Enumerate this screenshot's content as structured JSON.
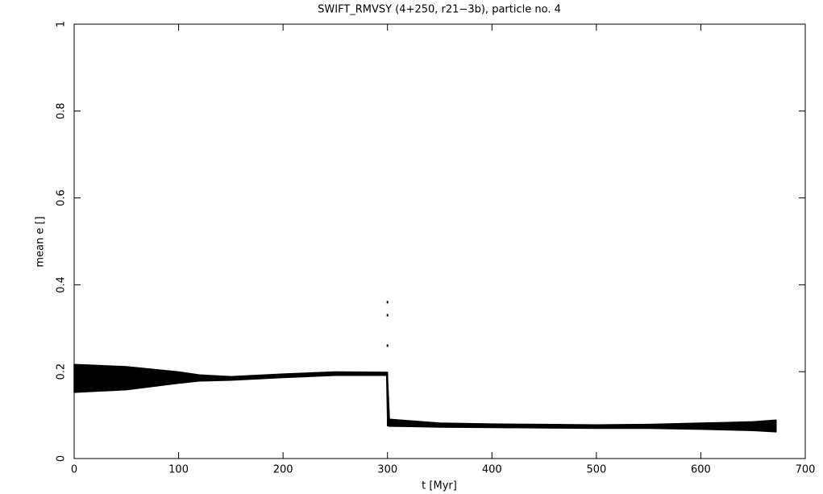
{
  "chart_data": {
    "type": "band",
    "title": "SWIFT_RMVSY (4+250, r21−3b), particle no. 4",
    "x_label": "t [Myr]",
    "y_label": "mean e []",
    "x": [
      0,
      50,
      100,
      120,
      150,
      200,
      250,
      299,
      300,
      302,
      350,
      400,
      450,
      500,
      550,
      600,
      650,
      672
    ],
    "y_max": [
      0.217,
      0.212,
      0.2,
      0.193,
      0.189,
      0.195,
      0.2,
      0.199,
      0.199,
      0.091,
      0.082,
      0.08,
      0.079,
      0.078,
      0.079,
      0.082,
      0.085,
      0.089
    ],
    "y_min": [
      0.152,
      0.158,
      0.173,
      0.178,
      0.18,
      0.186,
      0.191,
      0.191,
      0.075,
      0.074,
      0.072,
      0.071,
      0.07,
      0.069,
      0.069,
      0.067,
      0.064,
      0.061
    ],
    "spikes": {
      "x": [
        300,
        300,
        300
      ],
      "y": [
        0.36,
        0.33,
        0.26
      ]
    },
    "color": "#000000",
    "xlim": [
      0,
      700
    ],
    "xticks": [
      0,
      100,
      200,
      300,
      400,
      500,
      600,
      700
    ],
    "ylim": [
      0,
      1
    ],
    "yticks": [
      0,
      0.2,
      0.4,
      0.6,
      0.8,
      1
    ]
  }
}
